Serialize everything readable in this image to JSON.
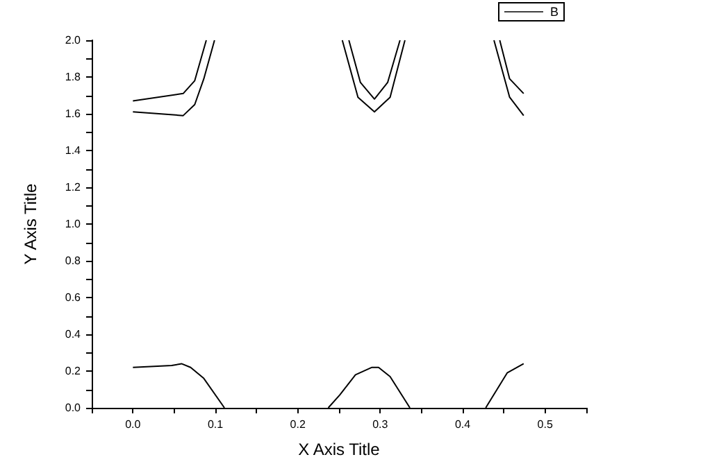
{
  "chart_data": {
    "type": "line",
    "xlabel": "X Axis Title",
    "ylabel": "Y Axis Title",
    "series": [
      {
        "name": "B",
        "color": "#000000",
        "x": [
          0,
          0.061,
          0.075,
          0.089,
          0.17,
          0.262,
          0.276,
          0.293,
          0.309,
          0.324,
          0.38,
          0.445,
          0.457,
          0.474
        ],
        "values": [
          1.67,
          1.71,
          1.78,
          2.0,
          null,
          2.0,
          1.77,
          1.68,
          1.77,
          2.0,
          null,
          2.0,
          1.79,
          1.71
        ]
      },
      {
        "color": "#000000",
        "x": [
          0,
          0.061,
          0.075,
          0.086,
          0.099,
          0.17,
          0.254,
          0.273,
          0.293,
          0.312,
          0.33,
          0.38,
          0.438,
          0.457,
          0.474
        ],
        "values": [
          1.61,
          1.59,
          1.65,
          1.79,
          2.0,
          null,
          2.0,
          1.69,
          1.61,
          1.69,
          2.0,
          null,
          2.0,
          1.69,
          1.59
        ]
      },
      {
        "color": "#000000",
        "x": [
          0,
          0.047,
          0.059,
          0.07,
          0.086,
          0.111,
          0.17,
          0.237,
          0.251,
          0.27,
          0.29,
          0.298,
          0.312,
          0.336,
          0.38,
          0.428,
          0.454,
          0.474
        ],
        "values": [
          0.22,
          0.23,
          0.24,
          0.22,
          0.16,
          0,
          null,
          0,
          0.07,
          0.18,
          0.22,
          0.22,
          0.17,
          0,
          null,
          0,
          0.19,
          0.24
        ]
      }
    ],
    "xlim": [
      -0.05,
      0.55
    ],
    "xticks": [
      {
        "value": -0.05,
        "label": null
      },
      {
        "value": 0,
        "label": "0.0"
      },
      {
        "value": 0.05,
        "label": null
      },
      {
        "value": 0.1,
        "label": "0.1"
      },
      {
        "value": 0.15,
        "label": null
      },
      {
        "value": 0.2,
        "label": "0.2"
      },
      {
        "value": 0.25,
        "label": null
      },
      {
        "value": 0.3,
        "label": "0.3"
      },
      {
        "value": 0.35,
        "label": null
      },
      {
        "value": 0.4,
        "label": "0.4"
      },
      {
        "value": 0.45,
        "label": null
      },
      {
        "value": 0.5,
        "label": "0.5"
      },
      {
        "value": 0.55,
        "label": null
      }
    ],
    "ylim": [
      0,
      2.0
    ],
    "yticks": [
      {
        "value": 0,
        "label": "0.0"
      },
      {
        "value": 0.1,
        "label": null
      },
      {
        "value": 0.2,
        "label": "0.2"
      },
      {
        "value": 0.3,
        "label": null
      },
      {
        "value": 0.4,
        "label": "0.4"
      },
      {
        "value": 0.5,
        "label": null
      },
      {
        "value": 0.6,
        "label": "0.6"
      },
      {
        "value": 0.7,
        "label": null
      },
      {
        "value": 0.8,
        "label": "0.8"
      },
      {
        "value": 0.9,
        "label": null
      },
      {
        "value": 1.0,
        "label": "1.0"
      },
      {
        "value": 1.1,
        "label": null
      },
      {
        "value": 1.2,
        "label": "1.2"
      },
      {
        "value": 1.3,
        "label": null
      },
      {
        "value": 1.4,
        "label": "1.4"
      },
      {
        "value": 1.5,
        "label": null
      },
      {
        "value": 1.6,
        "label": "1.6"
      },
      {
        "value": 1.7,
        "label": null
      },
      {
        "value": 1.8,
        "label": "1.8"
      },
      {
        "value": 1.9,
        "label": null
      },
      {
        "value": 2.0,
        "label": "2.0"
      }
    ],
    "grid": false,
    "legend": "top right",
    "marker": "none",
    "line_style": "solid"
  }
}
